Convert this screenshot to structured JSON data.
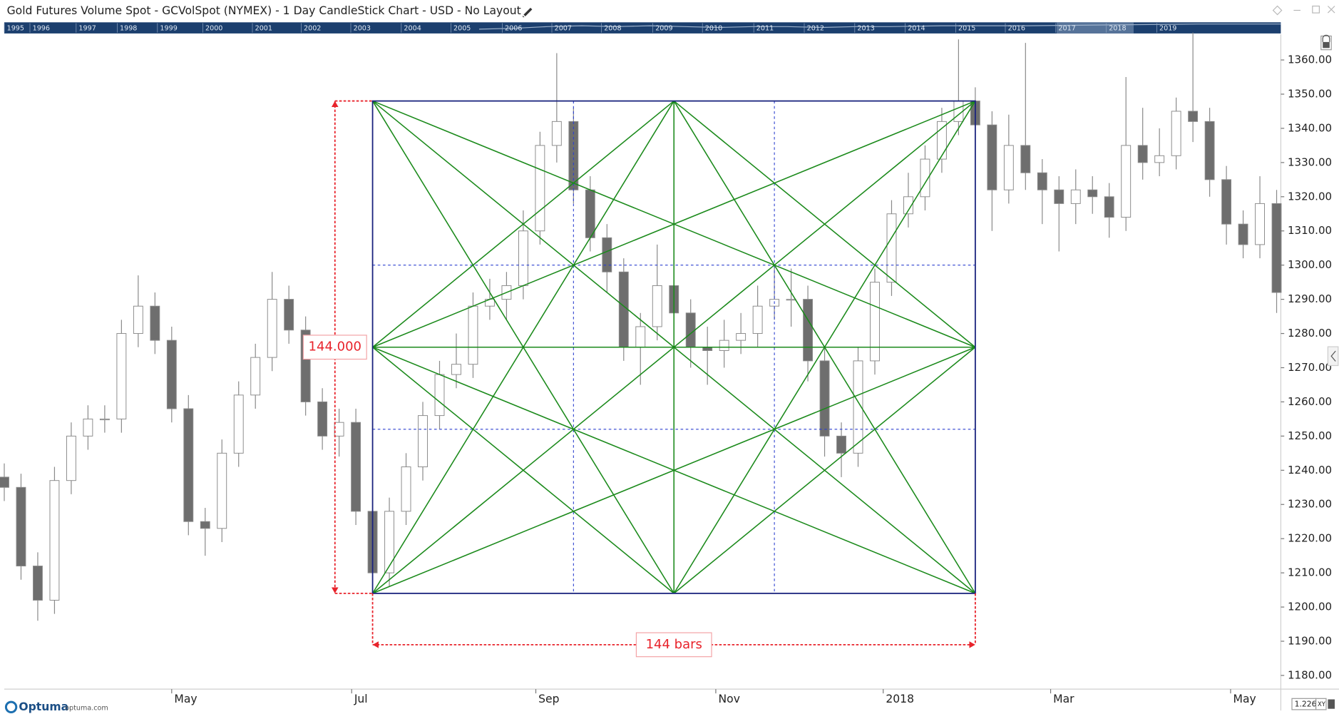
{
  "chart_data": {
    "type": "candlestick",
    "title": "Gold Futures Volume Spot  - GCVolSpot (NYMEX) - 1 Day CandleStick Chart - USD - No Layout",
    "xlim": [
      0,
      305
    ],
    "xticks": [
      {
        "value": 40,
        "label": "May"
      },
      {
        "value": 83,
        "label": "Jul"
      },
      {
        "value": 127,
        "label": "Sep"
      },
      {
        "value": 170,
        "label": "Nov"
      },
      {
        "value": 210,
        "label": "2018"
      },
      {
        "value": 250,
        "label": "Mar"
      },
      {
        "value": 293,
        "label": "May"
      }
    ],
    "ylim": [
      1176,
      1367.5
    ],
    "yticks": [
      {
        "value": 1180,
        "label": "1180.00"
      },
      {
        "value": 1190,
        "label": "1190.00"
      },
      {
        "value": 1200,
        "label": "1200.00"
      },
      {
        "value": 1210,
        "label": "1210.00"
      },
      {
        "value": 1220,
        "label": "1220.00"
      },
      {
        "value": 1230,
        "label": "1230.00"
      },
      {
        "value": 1240,
        "label": "1240.00"
      },
      {
        "value": 1250,
        "label": "1250.00"
      },
      {
        "value": 1260,
        "label": "1260.00"
      },
      {
        "value": 1270,
        "label": "1270.00"
      },
      {
        "value": 1280,
        "label": "1280.00"
      },
      {
        "value": 1290,
        "label": "1290.00"
      },
      {
        "value": 1300,
        "label": "1300.00"
      },
      {
        "value": 1310,
        "label": "1310.00"
      },
      {
        "value": 1320,
        "label": "1320.00"
      },
      {
        "value": 1330,
        "label": "1330.00"
      },
      {
        "value": 1340,
        "label": "1340.00"
      },
      {
        "value": 1350,
        "label": "1350.00"
      },
      {
        "value": 1360,
        "label": "1360.00"
      }
    ],
    "grid": false,
    "up_color": "#ffffff",
    "down_color": "#6e6e6e",
    "wick_color": "#8a8a8a",
    "x": [
      0,
      4,
      8,
      12,
      16,
      20,
      24,
      28,
      32,
      36,
      40,
      44,
      48,
      52,
      56,
      60,
      64,
      68,
      72,
      76,
      80,
      84,
      88,
      92,
      96,
      100,
      104,
      108,
      112,
      116,
      120,
      124,
      128,
      132,
      136,
      140,
      144,
      148,
      152,
      156,
      160,
      164,
      168,
      172,
      176,
      180,
      184,
      188,
      192,
      196,
      200,
      204,
      208,
      212,
      216,
      220,
      224,
      228,
      232,
      236,
      240,
      244,
      248,
      252,
      256,
      260,
      264,
      268,
      272,
      276,
      280,
      284,
      288,
      292,
      296,
      300,
      304
    ],
    "open": [
      1238,
      1235,
      1212,
      1202,
      1237,
      1250,
      1255,
      1255,
      1280,
      1288,
      1278,
      1258,
      1225,
      1223,
      1245,
      1262,
      1273,
      1290,
      1281,
      1260,
      1250,
      1254,
      1228,
      1210,
      1228,
      1241,
      1256,
      1268,
      1271,
      1288,
      1290,
      1294,
      1310,
      1335,
      1342,
      1322,
      1308,
      1298,
      1276,
      1282,
      1294,
      1286,
      1276,
      1275,
      1278,
      1280,
      1288,
      1290,
      1290,
      1272,
      1250,
      1245,
      1272,
      1295,
      1315,
      1320,
      1331,
      1342,
      1348,
      1341,
      1322,
      1335,
      1327,
      1322,
      1318,
      1322,
      1320,
      1314,
      1335,
      1330,
      1332,
      1345,
      1342,
      1325,
      1312,
      1306,
      1318
    ],
    "high": [
      1242,
      1239,
      1216,
      1241,
      1254,
      1259,
      1259,
      1284,
      1297,
      1292,
      1282,
      1262,
      1229,
      1249,
      1266,
      1277,
      1298,
      1294,
      1285,
      1264,
      1258,
      1258,
      1232,
      1232,
      1245,
      1260,
      1272,
      1280,
      1292,
      1296,
      1298,
      1316,
      1339,
      1362,
      1346,
      1326,
      1312,
      1302,
      1286,
      1306,
      1298,
      1290,
      1282,
      1284,
      1286,
      1294,
      1300,
      1299,
      1294,
      1276,
      1254,
      1276,
      1299,
      1319,
      1327,
      1335,
      1346,
      1366,
      1352,
      1345,
      1344,
      1365,
      1331,
      1326,
      1328,
      1326,
      1324,
      1355,
      1346,
      1340,
      1349,
      1368,
      1346,
      1329,
      1316,
      1326,
      1322
    ],
    "low": [
      1231,
      1208,
      1196,
      1198,
      1233,
      1246,
      1251,
      1251,
      1276,
      1274,
      1254,
      1221,
      1215,
      1219,
      1241,
      1258,
      1269,
      1277,
      1256,
      1246,
      1244,
      1224,
      1205,
      1206,
      1224,
      1237,
      1252,
      1264,
      1267,
      1284,
      1284,
      1290,
      1306,
      1330,
      1318,
      1304,
      1292,
      1272,
      1265,
      1278,
      1280,
      1270,
      1265,
      1270,
      1274,
      1276,
      1284,
      1282,
      1266,
      1244,
      1238,
      1241,
      1268,
      1291,
      1311,
      1316,
      1327,
      1338,
      1336,
      1310,
      1318,
      1322,
      1312,
      1304,
      1312,
      1315,
      1308,
      1310,
      1325,
      1326,
      1328,
      1336,
      1320,
      1306,
      1302,
      1302,
      1286
    ],
    "close": [
      1235,
      1212,
      1202,
      1237,
      1250,
      1255,
      1255,
      1280,
      1288,
      1278,
      1258,
      1225,
      1223,
      1245,
      1262,
      1273,
      1290,
      1281,
      1260,
      1250,
      1254,
      1228,
      1210,
      1228,
      1241,
      1256,
      1268,
      1271,
      1288,
      1290,
      1294,
      1310,
      1335,
      1342,
      1322,
      1308,
      1298,
      1276,
      1282,
      1294,
      1286,
      1276,
      1275,
      1278,
      1280,
      1288,
      1290,
      1290,
      1272,
      1250,
      1245,
      1272,
      1295,
      1315,
      1320,
      1331,
      1342,
      1348,
      1341,
      1322,
      1335,
      1327,
      1322,
      1318,
      1322,
      1320,
      1314,
      1335,
      1330,
      1332,
      1345,
      1342,
      1325,
      1312,
      1306,
      1318,
      1292
    ],
    "gann_box": {
      "start": 88,
      "end": 232,
      "bottom": 1204,
      "top": 1348,
      "price_range": {
        "value": 144,
        "label": "144.000"
      },
      "bar_range": {
        "value": 144,
        "label": "144 bars"
      },
      "frame_color": "#1a237e",
      "line_color": "#1b8a1b",
      "guide_color": "#2b3fcf",
      "measure_color": "#e8232b"
    }
  },
  "ui": {
    "years": [
      "1995",
      "1996",
      "1997",
      "1998",
      "1999",
      "2000",
      "2001",
      "2002",
      "2003",
      "2004",
      "2005",
      "2006",
      "2007",
      "2008",
      "2009",
      "2010",
      "2011",
      "2012",
      "2013",
      "2014",
      "2015",
      "2016",
      "2017",
      "2018",
      "2019"
    ],
    "logo": "Optuma",
    "site": "optuma.com",
    "scale_value": "1.226",
    "mode": "XY"
  }
}
